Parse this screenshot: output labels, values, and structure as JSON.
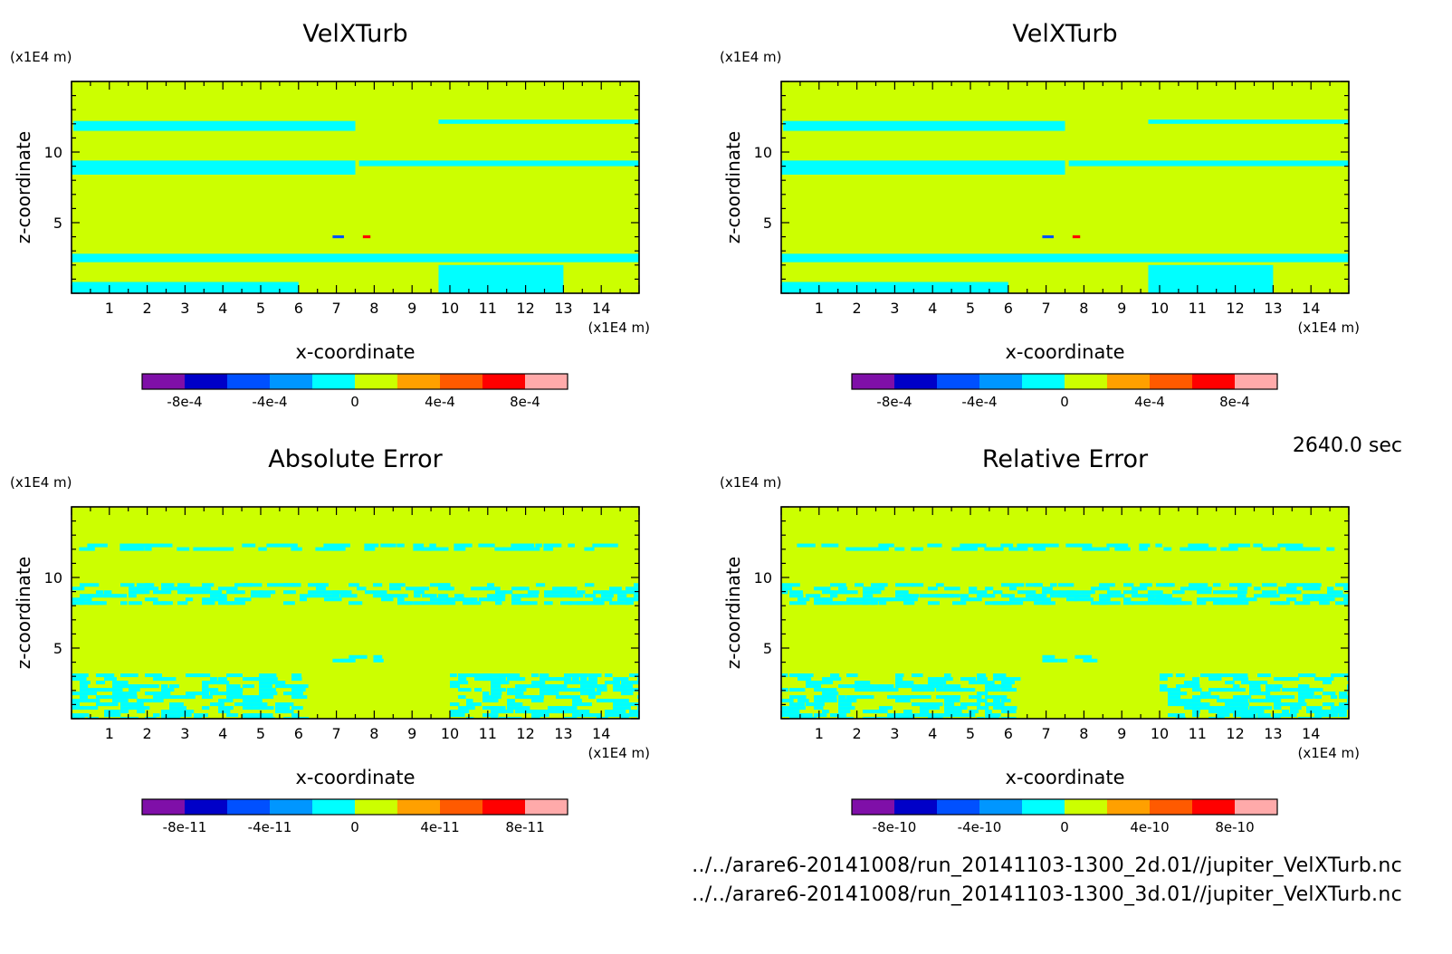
{
  "time_label": "2640.0 sec",
  "file_paths": [
    "../../arare6-20141008/run_20141103-1300_2d.01//jupiter_VelXTurb.nc",
    "../../arare6-20141008/run_20141103-1300_3d.01//jupiter_VelXTurb.nc"
  ],
  "chart_data": [
    {
      "type": "heatmap",
      "title": "VelXTurb",
      "xlabel": "x-coordinate",
      "ylabel": "z-coordinate",
      "x_unit": "(x1E4 m)",
      "y_unit": "(x1E4 m)",
      "xlim": [
        0,
        15
      ],
      "ylim": [
        0,
        15
      ],
      "x_ticks": [
        1,
        2,
        3,
        4,
        5,
        6,
        7,
        8,
        9,
        10,
        11,
        12,
        13,
        14
      ],
      "y_ticks": [
        5,
        10
      ],
      "colorbar_levels": [
        -0.001,
        -0.0008,
        -0.0006,
        -0.0004,
        -0.0002,
        0,
        0.0002,
        0.0004,
        0.0006,
        0.0008,
        0.001
      ],
      "colorbar_labels": [
        "-8e-4",
        "-4e-4",
        "0",
        "4e-4",
        "8e-4"
      ],
      "colorbar_label_values": [
        -0.0008,
        -0.0004,
        0,
        0.0004,
        0.0008
      ],
      "background_value": 0.0001,
      "regions": [
        {
          "value": -0.0001,
          "x": [
            0.05,
            7.5
          ],
          "y": [
            11.5,
            12.2
          ]
        },
        {
          "value": -0.0001,
          "x": [
            9.7,
            15
          ],
          "y": [
            12.0,
            12.3
          ]
        },
        {
          "value": -0.0001,
          "x": [
            0,
            7.5
          ],
          "y": [
            8.4,
            9.4
          ]
        },
        {
          "value": -0.0001,
          "x": [
            7.6,
            15
          ],
          "y": [
            9.0,
            9.4
          ]
        },
        {
          "value": -0.0001,
          "x": [
            0,
            15
          ],
          "y": [
            2.2,
            2.8
          ]
        },
        {
          "value": -0.0001,
          "x": [
            0,
            6.0
          ],
          "y": [
            0,
            0.8
          ]
        },
        {
          "value": -0.0001,
          "x": [
            9.7,
            13.0
          ],
          "y": [
            0,
            2.0
          ]
        },
        {
          "value": -0.0006,
          "x": [
            6.9,
            7.2
          ],
          "y": [
            3.9,
            4.1
          ]
        },
        {
          "value": 0.0007,
          "x": [
            7.7,
            7.9
          ],
          "y": [
            3.9,
            4.1
          ]
        }
      ]
    },
    {
      "type": "heatmap",
      "title": "VelXTurb",
      "xlabel": "x-coordinate",
      "ylabel": "z-coordinate",
      "x_unit": "(x1E4 m)",
      "y_unit": "(x1E4 m)",
      "xlim": [
        0,
        15
      ],
      "ylim": [
        0,
        15
      ],
      "x_ticks": [
        1,
        2,
        3,
        4,
        5,
        6,
        7,
        8,
        9,
        10,
        11,
        12,
        13,
        14
      ],
      "y_ticks": [
        5,
        10
      ],
      "colorbar_levels": [
        -0.001,
        -0.0008,
        -0.0006,
        -0.0004,
        -0.0002,
        0,
        0.0002,
        0.0004,
        0.0006,
        0.0008,
        0.001
      ],
      "colorbar_labels": [
        "-8e-4",
        "-4e-4",
        "0",
        "4e-4",
        "8e-4"
      ],
      "colorbar_label_values": [
        -0.0008,
        -0.0004,
        0,
        0.0004,
        0.0008
      ],
      "background_value": 0.0001,
      "regions": [
        {
          "value": -0.0001,
          "x": [
            0.05,
            7.5
          ],
          "y": [
            11.5,
            12.2
          ]
        },
        {
          "value": -0.0001,
          "x": [
            9.7,
            15
          ],
          "y": [
            12.0,
            12.3
          ]
        },
        {
          "value": -0.0001,
          "x": [
            0,
            7.5
          ],
          "y": [
            8.4,
            9.4
          ]
        },
        {
          "value": -0.0001,
          "x": [
            7.6,
            15
          ],
          "y": [
            9.0,
            9.4
          ]
        },
        {
          "value": -0.0001,
          "x": [
            0,
            15
          ],
          "y": [
            2.2,
            2.8
          ]
        },
        {
          "value": -0.0001,
          "x": [
            0,
            6.0
          ],
          "y": [
            0,
            0.8
          ]
        },
        {
          "value": -0.0001,
          "x": [
            9.7,
            13.0
          ],
          "y": [
            0,
            2.0
          ]
        },
        {
          "value": -0.0006,
          "x": [
            6.9,
            7.2
          ],
          "y": [
            3.9,
            4.1
          ]
        },
        {
          "value": 0.0007,
          "x": [
            7.7,
            7.9
          ],
          "y": [
            3.9,
            4.1
          ]
        }
      ]
    },
    {
      "type": "heatmap",
      "title": "Absolute Error",
      "xlabel": "x-coordinate",
      "ylabel": "z-coordinate",
      "x_unit": "(x1E4 m)",
      "y_unit": "(x1E4 m)",
      "xlim": [
        0,
        15
      ],
      "ylim": [
        0,
        15
      ],
      "x_ticks": [
        1,
        2,
        3,
        4,
        5,
        6,
        7,
        8,
        9,
        10,
        11,
        12,
        13,
        14
      ],
      "y_ticks": [
        5,
        10
      ],
      "colorbar_levels": [
        -1e-10,
        -8e-11,
        -6e-11,
        -4e-11,
        -2e-11,
        0,
        2e-11,
        4e-11,
        6e-11,
        8e-11,
        1e-10
      ],
      "colorbar_labels": [
        "-8e-11",
        "-4e-11",
        "0",
        "4e-11",
        "8e-11"
      ],
      "colorbar_label_values": [
        -8e-11,
        -4e-11,
        0,
        4e-11,
        8e-11
      ],
      "background_value": 1e-11,
      "regions": [
        {
          "value": -1e-11,
          "x": [
            0.2,
            14.5
          ],
          "y": [
            11.9,
            12.4
          ],
          "noisy": true
        },
        {
          "value": -1e-11,
          "x": [
            0,
            15
          ],
          "y": [
            8.3,
            9.6
          ],
          "noisy": true
        },
        {
          "value": -1e-11,
          "x": [
            0,
            6.0
          ],
          "y": [
            0,
            3.2
          ],
          "noisy": true
        },
        {
          "value": -1e-11,
          "x": [
            10.0,
            15
          ],
          "y": [
            0,
            3.2
          ],
          "noisy": true
        },
        {
          "value": -1e-11,
          "x": [
            6.9,
            8.0
          ],
          "y": [
            4.1,
            4.5
          ],
          "noisy": true
        }
      ]
    },
    {
      "type": "heatmap",
      "title": "Relative Error",
      "xlabel": "x-coordinate",
      "ylabel": "z-coordinate",
      "x_unit": "(x1E4 m)",
      "y_unit": "(x1E4 m)",
      "xlim": [
        0,
        15
      ],
      "ylim": [
        0,
        15
      ],
      "x_ticks": [
        1,
        2,
        3,
        4,
        5,
        6,
        7,
        8,
        9,
        10,
        11,
        12,
        13,
        14
      ],
      "y_ticks": [
        5,
        10
      ],
      "colorbar_levels": [
        -1e-09,
        -8e-10,
        -6e-10,
        -4e-10,
        -2e-10,
        0,
        2e-10,
        4e-10,
        6e-10,
        8e-10,
        1e-09
      ],
      "colorbar_labels": [
        "-8e-10",
        "-4e-10",
        "0",
        "4e-10",
        "8e-10"
      ],
      "colorbar_label_values": [
        -8e-10,
        -4e-10,
        0,
        4e-10,
        8e-10
      ],
      "background_value": 1e-10,
      "regions": [
        {
          "value": -1e-10,
          "x": [
            0.2,
            14.5
          ],
          "y": [
            11.9,
            12.4
          ],
          "noisy": true
        },
        {
          "value": -1e-10,
          "x": [
            0,
            15
          ],
          "y": [
            8.3,
            9.6
          ],
          "noisy": true
        },
        {
          "value": -1e-10,
          "x": [
            0,
            6.0
          ],
          "y": [
            0,
            3.2
          ],
          "noisy": true
        },
        {
          "value": -1e-10,
          "x": [
            10.0,
            15
          ],
          "y": [
            0,
            3.2
          ],
          "noisy": true
        },
        {
          "value": -1e-10,
          "x": [
            6.9,
            8.0
          ],
          "y": [
            4.1,
            4.5
          ],
          "noisy": true
        }
      ]
    }
  ],
  "colorbar_colors": [
    "#7f0fa8",
    "#0000c8",
    "#0050ff",
    "#0096ff",
    "#00ffff",
    "#ccff00",
    "#ffa000",
    "#ff5a00",
    "#ff0000",
    "#ffaaaa"
  ],
  "style": {
    "frame_color": "#000000"
  }
}
